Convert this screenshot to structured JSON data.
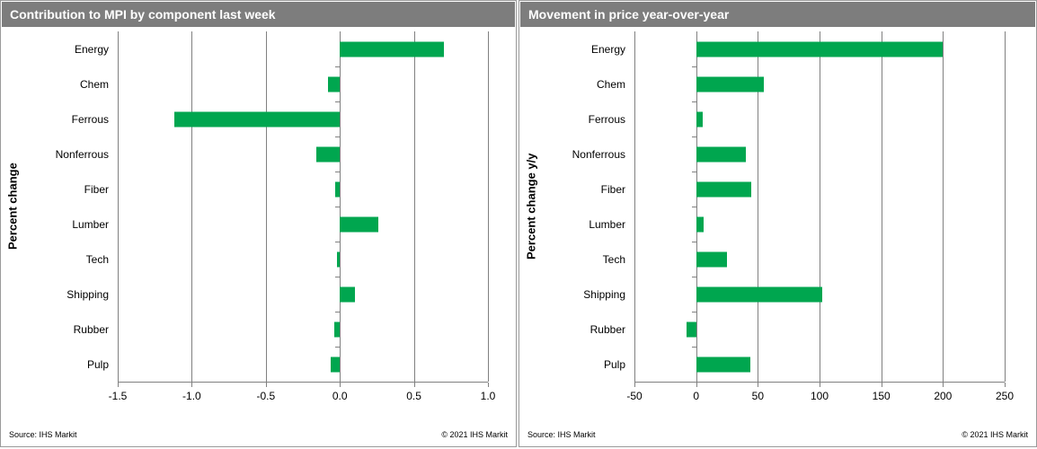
{
  "colors": {
    "bar_green": "#00A64F",
    "title_bar_bg": "#7D7D7D",
    "title_text": "#FFFFFF",
    "gridline": "#808080"
  },
  "panels": [
    {
      "title": "Contribution to MPI by component last week",
      "source": "Source:  IHS Markit",
      "copyright": "© 2021  IHS Markit"
    },
    {
      "title": "Movement in price year-over-year",
      "source": "Source:  IHS Markit",
      "copyright": "© 2021  IHS Markit"
    }
  ],
  "chart_data": [
    {
      "type": "bar",
      "orientation": "horizontal",
      "title": "Contribution to MPI by component last week",
      "categories": [
        "Energy",
        "Chem",
        "Ferrous",
        "Nonferrous",
        "Fiber",
        "Lumber",
        "Tech",
        "Shipping",
        "Rubber",
        "Pulp"
      ],
      "values": [
        0.7,
        -0.08,
        -1.12,
        -0.16,
        -0.03,
        0.26,
        -0.02,
        0.1,
        -0.04,
        -0.06
      ],
      "xlabel": "",
      "ylabel": "Percent change",
      "xlim": [
        -1.5,
        1.0
      ],
      "xticks": [
        -1.5,
        -1.0,
        -0.5,
        0.0,
        0.5,
        1.0
      ],
      "xtick_labels": [
        "-1.5",
        "-1.0",
        "-0.5",
        "0.0",
        "0.5",
        "1.0"
      ],
      "grid": true,
      "legend": false,
      "bar_color": "#00A64F"
    },
    {
      "type": "bar",
      "orientation": "horizontal",
      "title": "Movement in price year-over-year",
      "categories": [
        "Energy",
        "Chem",
        "Ferrous",
        "Nonferrous",
        "Fiber",
        "Lumber",
        "Tech",
        "Shipping",
        "Rubber",
        "Pulp"
      ],
      "values": [
        200,
        55,
        5,
        40,
        45,
        6,
        25,
        102,
        -8,
        44
      ],
      "xlabel": "",
      "ylabel": "Percent change y/y",
      "xlim": [
        -50,
        250
      ],
      "xticks": [
        -50,
        0,
        50,
        100,
        150,
        200,
        250
      ],
      "xtick_labels": [
        "-50",
        "0",
        "50",
        "100",
        "150",
        "200",
        "250"
      ],
      "grid": true,
      "legend": false,
      "bar_color": "#00A64F"
    }
  ]
}
